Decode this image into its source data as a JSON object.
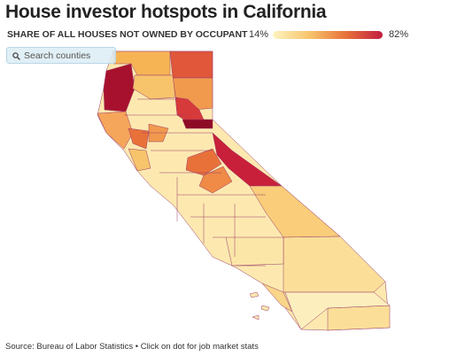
{
  "header": {
    "title": "House investor hotspots in California"
  },
  "legend": {
    "label": "SHARE OF ALL HOUSES NOT OWNED BY OCCUPANT",
    "min_label": "14%",
    "max_label": "82%",
    "colors": [
      "#fdf3c0",
      "#f7c46c",
      "#e8713a",
      "#c2203f"
    ]
  },
  "search": {
    "placeholder": "Search counties"
  },
  "footer": {
    "source": "Source: Bureau of Labor Statistics • Click on dot for job market stats"
  }
}
